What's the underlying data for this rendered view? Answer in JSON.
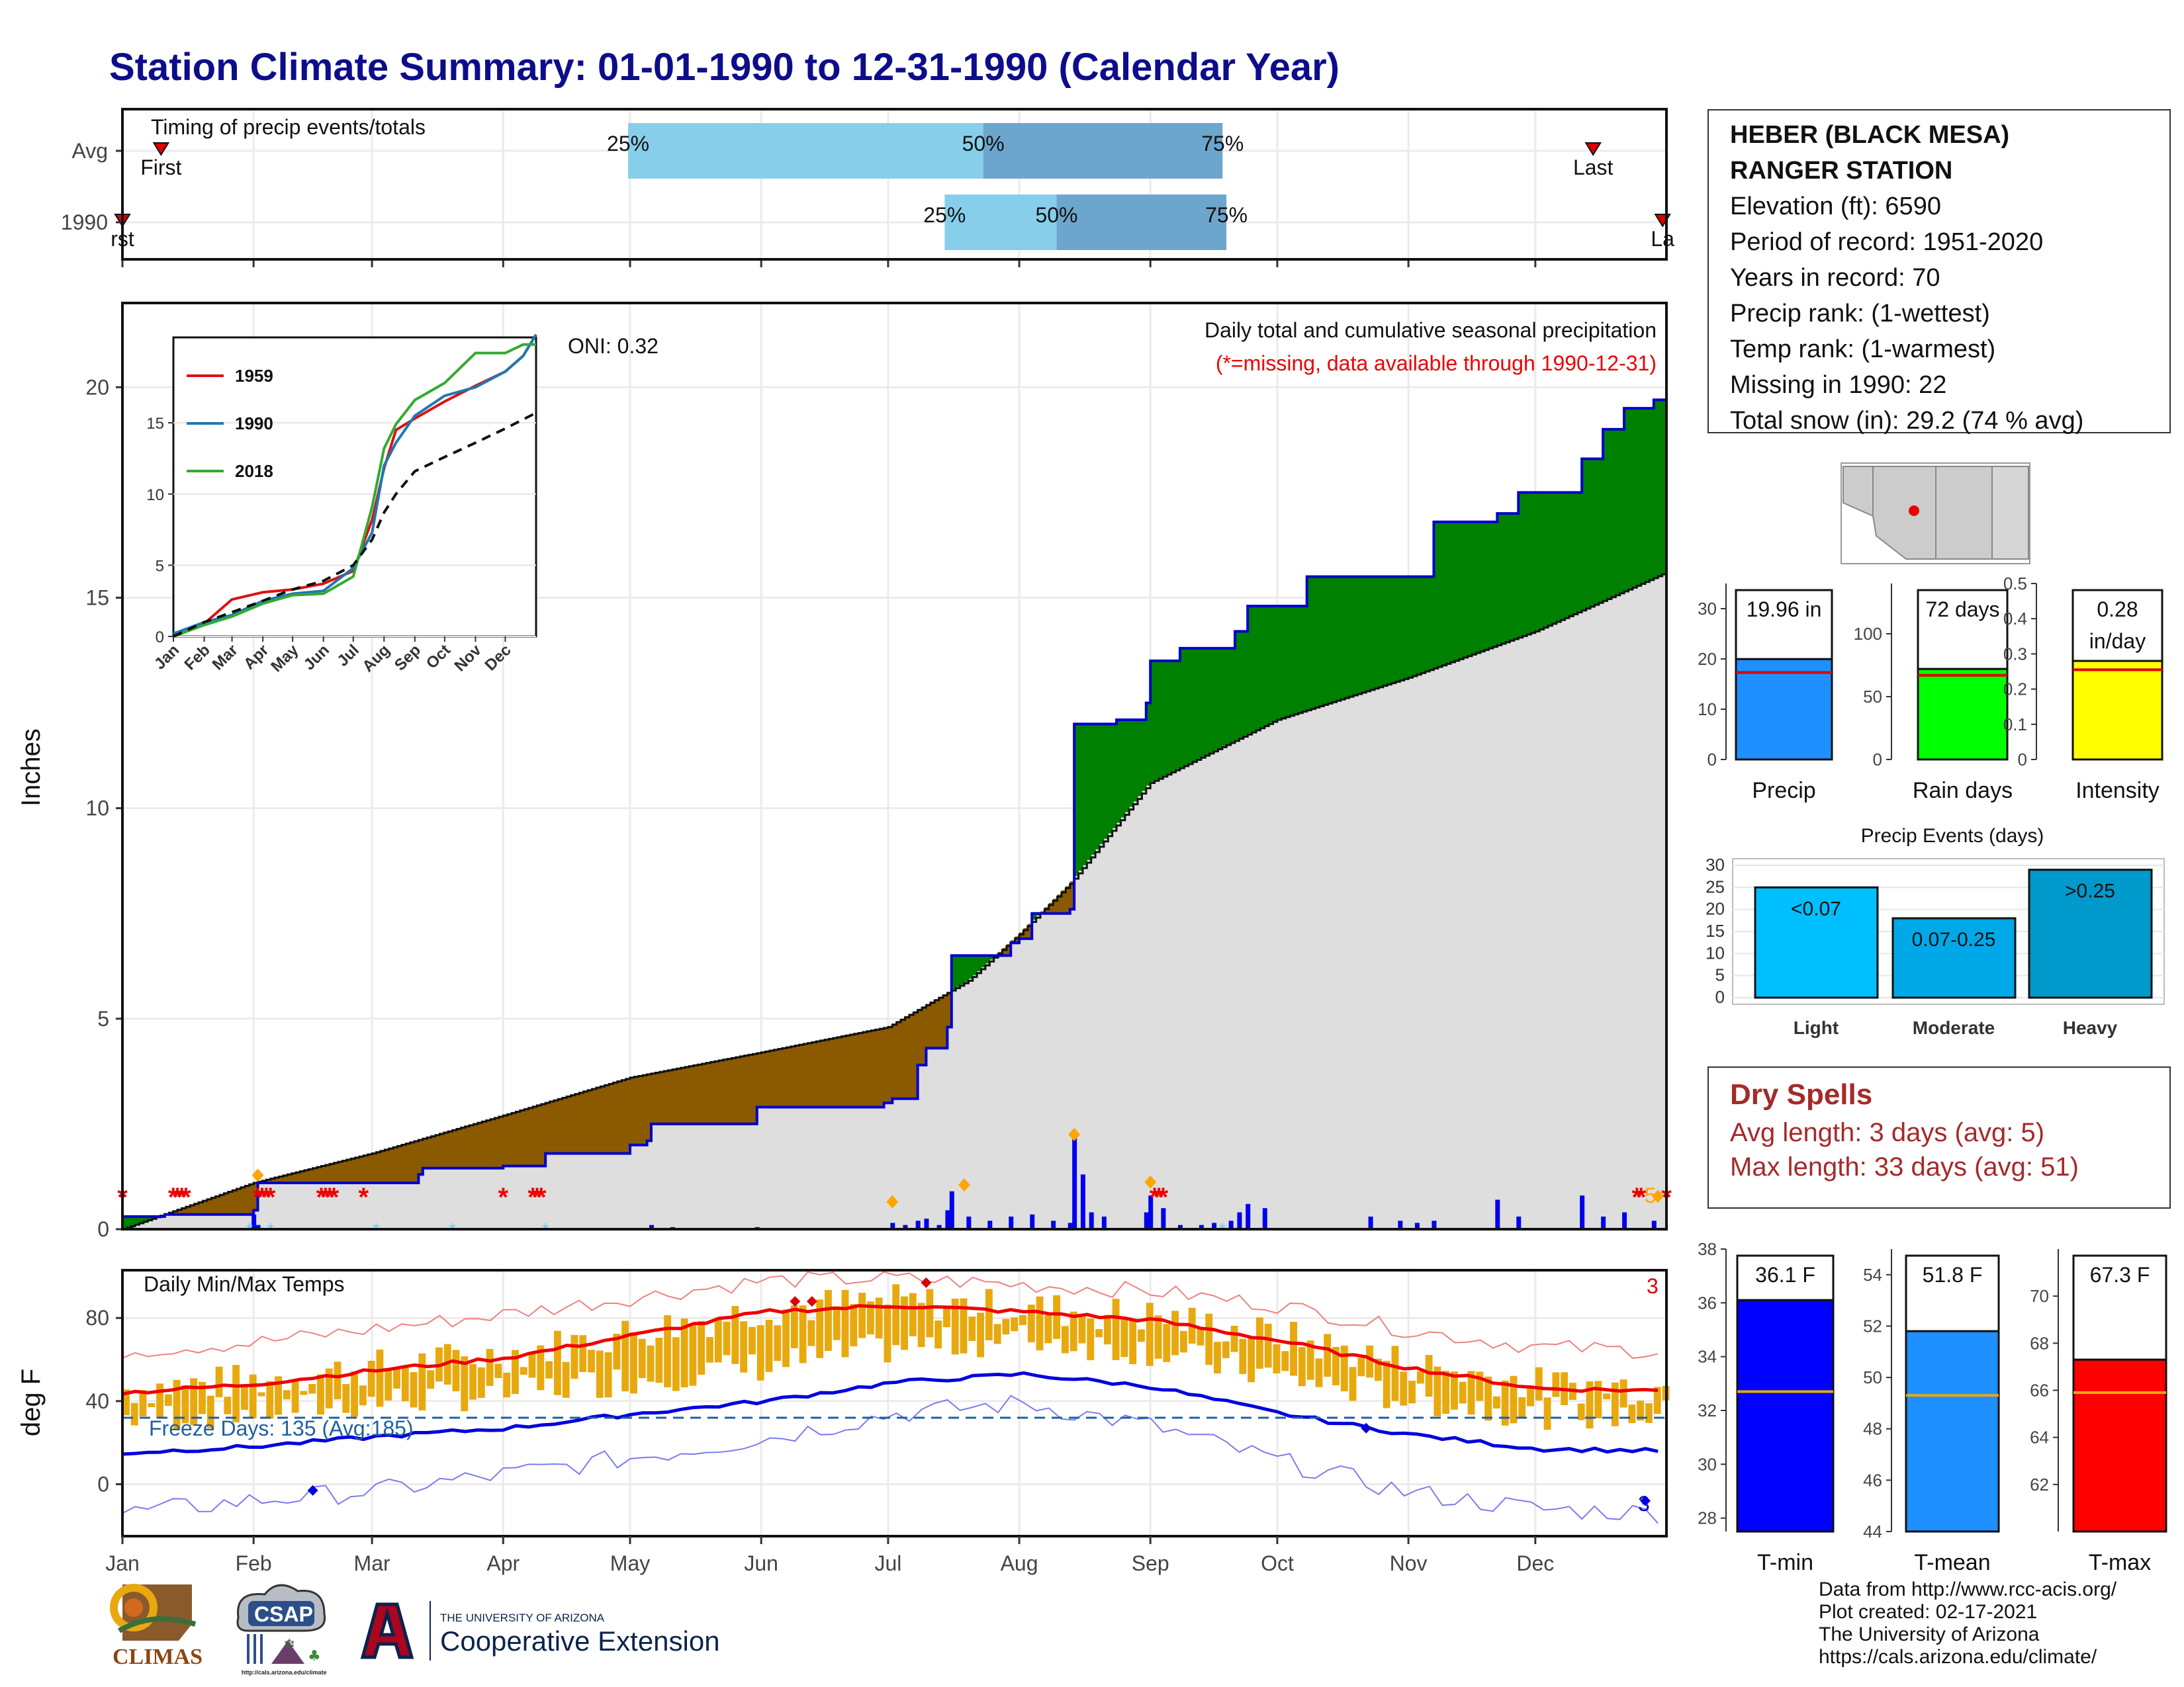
{
  "title": "Station Climate Summary: 01-01-1990 to 12-31-1990 (Calendar Year)",
  "station": {
    "name_line1": "HEBER (BLACK MESA)",
    "name_line2": "RANGER STATION",
    "lines": [
      "Elevation (ft): 6590",
      "Period of record: 1951-2020",
      "Years in record: 70",
      "Precip rank:  (1-wettest)",
      "Temp rank:  (1-warmest)",
      "Missing in 1990: 22",
      "Total snow (in): 29.2 (74 % avg)"
    ]
  },
  "dry_spells": {
    "title": "Dry Spells",
    "avg_length": "Avg length: 3 days (avg: 5)",
    "max_length": "Max length: 33 days (avg: 51)"
  },
  "credits": [
    "Data from http://www.rcc-acis.org/",
    "Plot created: 02-17-2021",
    "The University of Arizona",
    "https://cals.arizona.edu/climate/"
  ],
  "logos": {
    "climas": "CLIMAS",
    "csap": "CSAP",
    "csap_url": "http://cals.arizona.edu/climate",
    "ua_small": "THE UNIVERSITY OF ARIZONA",
    "ua_big": "Cooperative Extension"
  },
  "colors": {
    "cum_line": "#0000cc",
    "above_fill": "#008000",
    "below_fill": "#8b5a00",
    "avg_fill": "#dedede",
    "tmax": "#ee0000",
    "tmin": "#0000dd",
    "range_bar": "#e8a90f",
    "quartile_light": "#87ceeb",
    "quartile_dark": "#6ca6cd"
  },
  "chart_data": [
    {
      "type": "bar",
      "name": "timing",
      "title": "Timing of precip events/totals",
      "y_categories": [
        "Avg",
        "1990"
      ],
      "rows": [
        {
          "label": "Avg",
          "q25_day": 131,
          "q50_day": 223,
          "q75_day": 285,
          "first_day": 10,
          "last_day": 381,
          "labels": {
            "q25": "25%",
            "q50": "50%",
            "q75": "75%",
            "first": "First",
            "last": "Last"
          }
        },
        {
          "label": "1990",
          "q25_day": 213,
          "q50_day": 242,
          "q75_day": 286,
          "first_day": 0,
          "last_day": 399,
          "labels": {
            "q25": "25%",
            "q50": "50%",
            "q75": "75%",
            "first": "rst",
            "last": "La"
          }
        }
      ],
      "xlim": [
        0,
        400
      ]
    },
    {
      "type": "area",
      "name": "cumulative_precip",
      "title": "Daily total and cumulative seasonal precipitation",
      "subtitle": "(*=missing, data available through 1990-12-31)",
      "oni": "ONI: 0.32",
      "ylabel": "Inches",
      "ylim": [
        0,
        22
      ],
      "yticks": [
        0,
        5,
        10,
        15,
        20
      ],
      "xlim": [
        0,
        365
      ],
      "month_ticks": [
        "Jan",
        "Feb",
        "Mar",
        "Apr",
        "May",
        "Jun",
        "Jul",
        "Aug",
        "Sep",
        "Oct",
        "Nov",
        "Dec"
      ],
      "month_days": [
        0,
        31,
        59,
        90,
        120,
        151,
        181,
        212,
        243,
        273,
        304,
        334
      ],
      "observed_cumulative": [
        [
          0,
          0.3
        ],
        [
          10,
          0.35
        ],
        [
          31,
          0.45
        ],
        [
          32,
          1.1
        ],
        [
          70,
          1.3
        ],
        [
          71,
          1.45
        ],
        [
          90,
          1.5
        ],
        [
          100,
          1.8
        ],
        [
          120,
          2.0
        ],
        [
          124,
          2.1
        ],
        [
          125,
          2.5
        ],
        [
          150,
          2.9
        ],
        [
          180,
          3.0
        ],
        [
          182,
          3.1
        ],
        [
          188,
          3.9
        ],
        [
          190,
          4.3
        ],
        [
          195,
          4.8
        ],
        [
          196,
          6.5
        ],
        [
          210,
          6.8
        ],
        [
          212,
          6.9
        ],
        [
          215,
          7.5
        ],
        [
          224,
          7.6
        ],
        [
          225,
          12.0
        ],
        [
          235,
          12.1
        ],
        [
          242,
          12.5
        ],
        [
          243,
          13.5
        ],
        [
          250,
          13.8
        ],
        [
          262,
          13.8
        ],
        [
          263,
          14.2
        ],
        [
          266,
          14.8
        ],
        [
          280,
          15.5
        ],
        [
          310,
          16.8
        ],
        [
          314,
          16.8
        ],
        [
          325,
          17.0
        ],
        [
          330,
          17.5
        ],
        [
          345,
          18.3
        ],
        [
          350,
          19.0
        ],
        [
          355,
          19.5
        ],
        [
          362,
          19.7
        ],
        [
          365,
          19.96
        ]
      ],
      "average_cumulative": [
        [
          0,
          0
        ],
        [
          31,
          1.1
        ],
        [
          59,
          1.8
        ],
        [
          90,
          2.7
        ],
        [
          120,
          3.6
        ],
        [
          151,
          4.2
        ],
        [
          181,
          4.8
        ],
        [
          200,
          5.9
        ],
        [
          212,
          7.0
        ],
        [
          224,
          8.2
        ],
        [
          243,
          10.6
        ],
        [
          273,
          12.1
        ],
        [
          304,
          13.1
        ],
        [
          334,
          14.2
        ],
        [
          365,
          15.6
        ]
      ],
      "daily_bars": [
        [
          2,
          0.05
        ],
        [
          31,
          0.35
        ],
        [
          32,
          0.1
        ],
        [
          125,
          0.1
        ],
        [
          130,
          0.05
        ],
        [
          150,
          0.05
        ],
        [
          182,
          0.15
        ],
        [
          185,
          0.1
        ],
        [
          188,
          0.2
        ],
        [
          190,
          0.25
        ],
        [
          193,
          0.1
        ],
        [
          195,
          0.45
        ],
        [
          196,
          0.9
        ],
        [
          200,
          0.3
        ],
        [
          205,
          0.2
        ],
        [
          210,
          0.3
        ],
        [
          215,
          0.35
        ],
        [
          220,
          0.2
        ],
        [
          224,
          0.15
        ],
        [
          225,
          2.2
        ],
        [
          227,
          1.3
        ],
        [
          229,
          0.4
        ],
        [
          232,
          0.3
        ],
        [
          242,
          0.4
        ],
        [
          243,
          0.8
        ],
        [
          246,
          0.5
        ],
        [
          250,
          0.1
        ],
        [
          255,
          0.1
        ],
        [
          258,
          0.15
        ],
        [
          262,
          0.2
        ],
        [
          264,
          0.4
        ],
        [
          266,
          0.6
        ],
        [
          270,
          0.5
        ],
        [
          295,
          0.3
        ],
        [
          302,
          0.2
        ],
        [
          306,
          0.15
        ],
        [
          310,
          0.2
        ],
        [
          325,
          0.7
        ],
        [
          330,
          0.3
        ],
        [
          345,
          0.8
        ],
        [
          350,
          0.3
        ],
        [
          355,
          0.4
        ],
        [
          362,
          0.2
        ]
      ],
      "missing_days": [
        0,
        12,
        13,
        14,
        15,
        32,
        33,
        34,
        35,
        47,
        48,
        49,
        50,
        57,
        90,
        97,
        98,
        99,
        244,
        245,
        246,
        358,
        359,
        365
      ],
      "orange_markers": [
        [
          32,
          1.28
        ],
        [
          182,
          0.65
        ],
        [
          199,
          1.05
        ],
        [
          225,
          2.25
        ],
        [
          243,
          1.12
        ],
        [
          363,
          0.78
        ]
      ],
      "orange_label": "5"
    },
    {
      "type": "line",
      "name": "inset_cumulative",
      "series_years": [
        "1959",
        "1990",
        "2018"
      ],
      "ylim": [
        0,
        21
      ],
      "yticks": [
        0,
        5,
        10,
        15
      ],
      "x_labels": [
        "Jan",
        "Feb",
        "Mar",
        "Apr",
        "May",
        "Jun",
        "Jul",
        "Aug",
        "Sep",
        "Oct",
        "Nov",
        "Dec"
      ],
      "series": [
        {
          "name": "1959",
          "values": [
            [
              0,
              0
            ],
            [
              31,
              0.9
            ],
            [
              59,
              2.6
            ],
            [
              90,
              3.1
            ],
            [
              120,
              3.3
            ],
            [
              151,
              3.7
            ],
            [
              181,
              4.6
            ],
            [
              200,
              8.2
            ],
            [
              212,
              11.8
            ],
            [
              224,
              14.5
            ],
            [
              243,
              15.3
            ],
            [
              273,
              16.5
            ],
            [
              304,
              17.6
            ],
            [
              334,
              18.6
            ],
            [
              352,
              19.7
            ],
            [
              365,
              21.2
            ]
          ]
        },
        {
          "name": "1990",
          "values": [
            [
              0,
              0.2
            ],
            [
              31,
              1.0
            ],
            [
              59,
              1.5
            ],
            [
              90,
              2.5
            ],
            [
              120,
              3.0
            ],
            [
              151,
              3.2
            ],
            [
              181,
              4.8
            ],
            [
              200,
              7.3
            ],
            [
              212,
              12.0
            ],
            [
              224,
              13.6
            ],
            [
              243,
              15.5
            ],
            [
              273,
              16.9
            ],
            [
              304,
              17.5
            ],
            [
              334,
              18.6
            ],
            [
              352,
              19.7
            ],
            [
              365,
              21.2
            ]
          ]
        },
        {
          "name": "2018",
          "values": [
            [
              0,
              0
            ],
            [
              31,
              0.8
            ],
            [
              59,
              1.4
            ],
            [
              90,
              2.3
            ],
            [
              120,
              2.9
            ],
            [
              151,
              3.0
            ],
            [
              181,
              4.2
            ],
            [
              200,
              9.1
            ],
            [
              212,
              13.2
            ],
            [
              224,
              14.9
            ],
            [
              243,
              16.6
            ],
            [
              273,
              17.8
            ],
            [
              304,
              19.9
            ],
            [
              334,
              19.9
            ],
            [
              352,
              20.5
            ],
            [
              365,
              20.5
            ]
          ]
        },
        {
          "name": "Average",
          "values": [
            [
              0,
              0
            ],
            [
              31,
              1.0
            ],
            [
              59,
              1.7
            ],
            [
              90,
              2.5
            ],
            [
              120,
              3.3
            ],
            [
              151,
              3.9
            ],
            [
              181,
              5.0
            ],
            [
              200,
              6.8
            ],
            [
              212,
              8.7
            ],
            [
              224,
              10.0
            ],
            [
              243,
              11.6
            ],
            [
              273,
              12.6
            ],
            [
              304,
              13.6
            ],
            [
              334,
              14.6
            ],
            [
              365,
              15.7
            ]
          ]
        }
      ]
    },
    {
      "type": "bar",
      "name": "precip_summary",
      "panels": [
        {
          "label": "Precip",
          "value": 19.96,
          "value_label": "19.96 in",
          "avg": 17.3,
          "ylim": [
            0,
            35
          ],
          "yticks": [
            0,
            10,
            20,
            30
          ]
        },
        {
          "label": "Rain days",
          "value": 72,
          "value_label": "72 days",
          "avg": 67,
          "ylim": [
            0,
            140
          ],
          "yticks": [
            0,
            50,
            100
          ]
        },
        {
          "label": "Intensity",
          "value": 0.28,
          "value_label": "0.28 in/day",
          "avg": 0.255,
          "ylim": [
            0,
            0.5
          ],
          "yticks": [
            0.0,
            0.1,
            0.2,
            0.3,
            0.4,
            0.5
          ]
        }
      ]
    },
    {
      "type": "bar",
      "name": "precip_events",
      "title": "Precip Events (days)",
      "categories": [
        "Light",
        "Moderate",
        "Heavy"
      ],
      "bar_labels": [
        "<0.07",
        "0.07-0.25",
        ">0.25"
      ],
      "values": [
        25,
        18,
        29
      ],
      "ylim": [
        0,
        30
      ],
      "yticks": [
        0,
        5,
        10,
        15,
        20,
        25,
        30
      ]
    },
    {
      "type": "line",
      "name": "daily_temps",
      "title": "Daily Min/Max Temps",
      "ylabel": "deg F",
      "ylim": [
        -25,
        103
      ],
      "yticks": [
        0,
        40,
        80
      ],
      "freeze_label": "Freeze Days: 135 (Avg:185)",
      "freeze_line": 32,
      "count_label_max": "3",
      "count_label_min": "3",
      "avg_max_monthly": [
        44,
        48,
        55,
        61,
        72,
        83,
        86,
        83,
        79,
        69,
        56,
        46,
        45
      ],
      "avg_min_monthly": [
        15,
        18,
        23,
        27,
        34,
        40,
        49,
        53,
        47,
        34,
        24,
        17,
        16
      ],
      "record_max_monthly": [
        64,
        68,
        75,
        82,
        90,
        98,
        99,
        96,
        93,
        86,
        74,
        66,
        64
      ],
      "record_min_monthly": [
        -14,
        -8,
        -3,
        5,
        13,
        22,
        34,
        39,
        28,
        11,
        -4,
        -12,
        -14
      ]
    },
    {
      "type": "bar",
      "name": "temp_summary",
      "panels": [
        {
          "label": "T-min",
          "value": 36.1,
          "value_label": "36.1 F",
          "avg": 32.7,
          "ylim": [
            27.5,
            38
          ],
          "yticks": [
            28,
            30,
            32,
            34,
            36,
            38
          ]
        },
        {
          "label": "T-mean",
          "value": 51.8,
          "value_label": "51.8 F",
          "avg": 49.3,
          "ylim": [
            44,
            55
          ],
          "yticks": [
            44,
            46,
            48,
            50,
            52,
            54
          ]
        },
        {
          "label": "T-max",
          "value": 67.3,
          "value_label": "67.3 F",
          "avg": 65.9,
          "ylim": [
            60,
            72
          ],
          "yticks": [
            62,
            64,
            66,
            68,
            70
          ]
        }
      ]
    }
  ]
}
